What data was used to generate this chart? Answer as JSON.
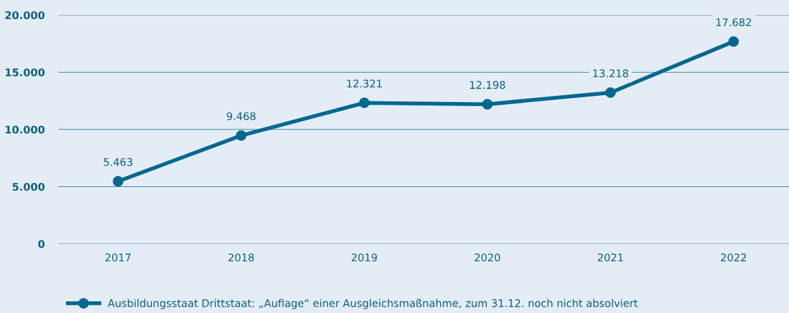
{
  "chart_data": {
    "type": "line",
    "categories": [
      "2017",
      "2018",
      "2019",
      "2020",
      "2021",
      "2022"
    ],
    "series": [
      {
        "name": "Ausbildungsstaat Drittstaat: „Auflage“ einer Ausgleichsmaßnahme, zum 31.12. noch nicht absolviert",
        "color": "#00688f",
        "values": [
          5463,
          9468,
          12321,
          12198,
          13218,
          17682
        ],
        "value_labels": [
          "5.463",
          "9.468",
          "12.321",
          "12.198",
          "13.218",
          "17.682"
        ]
      }
    ],
    "ylim": [
      0,
      20000
    ],
    "yticks": [
      {
        "value": 0,
        "label": "0"
      },
      {
        "value": 5000,
        "label": "5.000"
      },
      {
        "value": 10000,
        "label": "10.000"
      },
      {
        "value": 15000,
        "label": "15.000"
      },
      {
        "value": 20000,
        "label": "20.000"
      }
    ],
    "grid": "y",
    "legend": "bottom",
    "marker": "circle",
    "line_style": "solid"
  }
}
